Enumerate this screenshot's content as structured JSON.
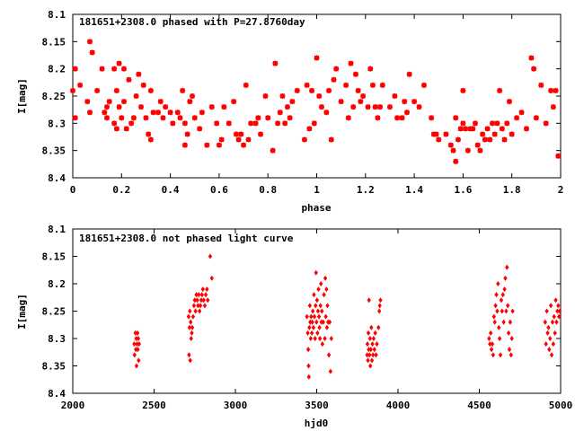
{
  "chart_data": [
    {
      "type": "scatter",
      "title": "181651+2308.0 phased with P=27.8760day",
      "xlabel": "phase",
      "ylabel": "I[mag]",
      "xlim": [
        0,
        2
      ],
      "ylim": [
        8.4,
        8.1
      ],
      "y_inverted": true,
      "marker": "star",
      "marker_color": "#ff0000",
      "xticks": [
        "0",
        "0.2",
        "0.4",
        "0.6",
        "0.8",
        "1",
        "1.2",
        "1.4",
        "1.6",
        "1.8",
        "2"
      ],
      "yticks": [
        "8.1",
        "8.15",
        "8.2",
        "8.25",
        "8.3",
        "8.35",
        "8.4"
      ],
      "points": [
        [
          0.0,
          8.24
        ],
        [
          0.01,
          8.2
        ],
        [
          0.01,
          8.29
        ],
        [
          0.03,
          8.23
        ],
        [
          0.06,
          8.26
        ],
        [
          0.07,
          8.15
        ],
        [
          0.07,
          8.28
        ],
        [
          0.08,
          8.17
        ],
        [
          0.1,
          8.24
        ],
        [
          0.12,
          8.2
        ],
        [
          0.13,
          8.28
        ],
        [
          0.14,
          8.27
        ],
        [
          0.14,
          8.29
        ],
        [
          0.15,
          8.26
        ],
        [
          0.17,
          8.3
        ],
        [
          0.17,
          8.2
        ],
        [
          0.18,
          8.31
        ],
        [
          0.18,
          8.24
        ],
        [
          0.19,
          8.19
        ],
        [
          0.19,
          8.27
        ],
        [
          0.2,
          8.29
        ],
        [
          0.21,
          8.2
        ],
        [
          0.21,
          8.26
        ],
        [
          0.22,
          8.31
        ],
        [
          0.23,
          8.22
        ],
        [
          0.24,
          8.3
        ],
        [
          0.25,
          8.29
        ],
        [
          0.26,
          8.25
        ],
        [
          0.27,
          8.21
        ],
        [
          0.28,
          8.27
        ],
        [
          0.29,
          8.23
        ],
        [
          0.3,
          8.29
        ],
        [
          0.31,
          8.32
        ],
        [
          0.32,
          8.24
        ],
        [
          0.32,
          8.33
        ],
        [
          0.33,
          8.28
        ],
        [
          0.35,
          8.28
        ],
        [
          0.36,
          8.26
        ],
        [
          0.37,
          8.29
        ],
        [
          0.38,
          8.27
        ],
        [
          0.4,
          8.28
        ],
        [
          0.41,
          8.3
        ],
        [
          0.43,
          8.28
        ],
        [
          0.44,
          8.29
        ],
        [
          0.45,
          8.24
        ],
        [
          0.46,
          8.3
        ],
        [
          0.46,
          8.34
        ],
        [
          0.47,
          8.32
        ],
        [
          0.48,
          8.26
        ],
        [
          0.49,
          8.25
        ],
        [
          0.5,
          8.29
        ],
        [
          0.52,
          8.31
        ],
        [
          0.53,
          8.28
        ],
        [
          0.55,
          8.34
        ],
        [
          0.57,
          8.27
        ],
        [
          0.59,
          8.3
        ],
        [
          0.6,
          8.34
        ],
        [
          0.61,
          8.33
        ],
        [
          0.62,
          8.27
        ],
        [
          0.64,
          8.3
        ],
        [
          0.66,
          8.26
        ],
        [
          0.67,
          8.32
        ],
        [
          0.68,
          8.33
        ],
        [
          0.69,
          8.32
        ],
        [
          0.7,
          8.34
        ],
        [
          0.71,
          8.23
        ],
        [
          0.72,
          8.33
        ],
        [
          0.73,
          8.3
        ],
        [
          0.75,
          8.3
        ],
        [
          0.76,
          8.29
        ],
        [
          0.77,
          8.32
        ],
        [
          0.79,
          8.25
        ],
        [
          0.8,
          8.29
        ],
        [
          0.82,
          8.35
        ],
        [
          0.83,
          8.19
        ],
        [
          0.84,
          8.3
        ],
        [
          0.85,
          8.28
        ],
        [
          0.86,
          8.25
        ],
        [
          0.87,
          8.3
        ],
        [
          0.88,
          8.27
        ],
        [
          0.89,
          8.29
        ],
        [
          0.9,
          8.26
        ],
        [
          0.92,
          8.24
        ],
        [
          0.95,
          8.33
        ],
        [
          0.96,
          8.23
        ],
        [
          0.97,
          8.31
        ],
        [
          0.98,
          8.24
        ],
        [
          0.99,
          8.3
        ],
        [
          1.0,
          8.18
        ],
        [
          1.01,
          8.25
        ],
        [
          1.02,
          8.27
        ],
        [
          1.04,
          8.28
        ],
        [
          1.05,
          8.24
        ],
        [
          1.06,
          8.33
        ],
        [
          1.07,
          8.22
        ],
        [
          1.08,
          8.2
        ],
        [
          1.1,
          8.26
        ],
        [
          1.12,
          8.23
        ],
        [
          1.13,
          8.29
        ],
        [
          1.14,
          8.19
        ],
        [
          1.15,
          8.27
        ],
        [
          1.16,
          8.21
        ],
        [
          1.17,
          8.24
        ],
        [
          1.18,
          8.26
        ],
        [
          1.19,
          8.25
        ],
        [
          1.21,
          8.27
        ],
        [
          1.22,
          8.2
        ],
        [
          1.23,
          8.23
        ],
        [
          1.24,
          8.27
        ],
        [
          1.25,
          8.29
        ],
        [
          1.26,
          8.27
        ],
        [
          1.27,
          8.23
        ],
        [
          1.3,
          8.27
        ],
        [
          1.32,
          8.25
        ],
        [
          1.33,
          8.29
        ],
        [
          1.35,
          8.29
        ],
        [
          1.36,
          8.26
        ],
        [
          1.37,
          8.28
        ],
        [
          1.38,
          8.21
        ],
        [
          1.4,
          8.26
        ],
        [
          1.42,
          8.27
        ],
        [
          1.44,
          8.23
        ],
        [
          1.47,
          8.29
        ],
        [
          1.48,
          8.32
        ],
        [
          1.49,
          8.32
        ],
        [
          1.5,
          8.33
        ],
        [
          1.53,
          8.32
        ],
        [
          1.55,
          8.34
        ],
        [
          1.56,
          8.35
        ],
        [
          1.57,
          8.29
        ],
        [
          1.57,
          8.37
        ],
        [
          1.58,
          8.33
        ],
        [
          1.59,
          8.31
        ],
        [
          1.6,
          8.24
        ],
        [
          1.6,
          8.3
        ],
        [
          1.61,
          8.31
        ],
        [
          1.62,
          8.35
        ],
        [
          1.63,
          8.31
        ],
        [
          1.64,
          8.31
        ],
        [
          1.65,
          8.3
        ],
        [
          1.66,
          8.34
        ],
        [
          1.67,
          8.35
        ],
        [
          1.68,
          8.32
        ],
        [
          1.69,
          8.33
        ],
        [
          1.7,
          8.31
        ],
        [
          1.71,
          8.33
        ],
        [
          1.72,
          8.3
        ],
        [
          1.73,
          8.32
        ],
        [
          1.74,
          8.3
        ],
        [
          1.75,
          8.24
        ],
        [
          1.76,
          8.31
        ],
        [
          1.77,
          8.33
        ],
        [
          1.78,
          8.3
        ],
        [
          1.79,
          8.26
        ],
        [
          1.8,
          8.32
        ],
        [
          1.82,
          8.29
        ],
        [
          1.84,
          8.28
        ],
        [
          1.86,
          8.31
        ],
        [
          1.88,
          8.18
        ],
        [
          1.89,
          8.2
        ],
        [
          1.9,
          8.29
        ],
        [
          1.92,
          8.23
        ],
        [
          1.94,
          8.3
        ],
        [
          1.96,
          8.24
        ],
        [
          1.97,
          8.27
        ],
        [
          1.98,
          8.24
        ],
        [
          1.99,
          8.36
        ]
      ]
    },
    {
      "type": "scatter",
      "title": "181651+2308.0 not phased light curve",
      "xlabel": "hjd0",
      "ylabel": "I[mag]",
      "xlim": [
        2000,
        5000
      ],
      "ylim": [
        8.4,
        8.1
      ],
      "y_inverted": true,
      "marker": "diamond",
      "marker_color": "#ff0000",
      "xticks": [
        "2000",
        "2500",
        "3000",
        "3500",
        "4000",
        "4500",
        "5000"
      ],
      "yticks": [
        "8.1",
        "8.15",
        "8.2",
        "8.25",
        "8.3",
        "8.35",
        "8.4"
      ],
      "points": [
        [
          2378,
          8.31
        ],
        [
          2380,
          8.33
        ],
        [
          2385,
          8.29
        ],
        [
          2388,
          8.32
        ],
        [
          2390,
          8.3
        ],
        [
          2392,
          8.35
        ],
        [
          2395,
          8.31
        ],
        [
          2398,
          8.29
        ],
        [
          2400,
          8.32
        ],
        [
          2403,
          8.3
        ],
        [
          2405,
          8.34
        ],
        [
          2408,
          8.31
        ],
        [
          2712,
          8.26
        ],
        [
          2715,
          8.33
        ],
        [
          2718,
          8.28
        ],
        [
          2720,
          8.25
        ],
        [
          2722,
          8.34
        ],
        [
          2725,
          8.27
        ],
        [
          2728,
          8.3
        ],
        [
          2732,
          8.29
        ],
        [
          2735,
          8.28
        ],
        [
          2740,
          8.26
        ],
        [
          2745,
          8.24
        ],
        [
          2750,
          8.23
        ],
        [
          2755,
          8.25
        ],
        [
          2760,
          8.22
        ],
        [
          2765,
          8.23
        ],
        [
          2770,
          8.24
        ],
        [
          2775,
          8.22
        ],
        [
          2780,
          8.25
        ],
        [
          2785,
          8.24
        ],
        [
          2790,
          8.23
        ],
        [
          2795,
          8.22
        ],
        [
          2800,
          8.21
        ],
        [
          2805,
          8.23
        ],
        [
          2812,
          8.24
        ],
        [
          2818,
          8.22
        ],
        [
          2825,
          8.21
        ],
        [
          2830,
          8.23
        ],
        [
          2845,
          8.15
        ],
        [
          2855,
          8.19
        ],
        [
          3440,
          8.26
        ],
        [
          3445,
          8.29
        ],
        [
          3448,
          8.32
        ],
        [
          3450,
          8.35
        ],
        [
          3452,
          8.37
        ],
        [
          3455,
          8.28
        ],
        [
          3458,
          8.24
        ],
        [
          3460,
          8.27
        ],
        [
          3463,
          8.3
        ],
        [
          3466,
          8.26
        ],
        [
          3470,
          8.29
        ],
        [
          3473,
          8.27
        ],
        [
          3476,
          8.25
        ],
        [
          3480,
          8.28
        ],
        [
          3483,
          8.22
        ],
        [
          3486,
          8.26
        ],
        [
          3490,
          8.3
        ],
        [
          3493,
          8.24
        ],
        [
          3496,
          8.18
        ],
        [
          3499,
          8.27
        ],
        [
          3502,
          8.23
        ],
        [
          3505,
          8.29
        ],
        [
          3508,
          8.25
        ],
        [
          3511,
          8.21
        ],
        [
          3514,
          8.26
        ],
        [
          3517,
          8.28
        ],
        [
          3520,
          8.3
        ],
        [
          3523,
          8.24
        ],
        [
          3526,
          8.2
        ],
        [
          3529,
          8.27
        ],
        [
          3532,
          8.25
        ],
        [
          3535,
          8.31
        ],
        [
          3540,
          8.27
        ],
        [
          3545,
          8.22
        ],
        [
          3550,
          8.3
        ],
        [
          3553,
          8.19
        ],
        [
          3556,
          8.26
        ],
        [
          3560,
          8.21
        ],
        [
          3563,
          8.28
        ],
        [
          3566,
          8.24
        ],
        [
          3570,
          8.27
        ],
        [
          3575,
          8.33
        ],
        [
          3580,
          8.27
        ],
        [
          3585,
          8.36
        ],
        [
          3590,
          8.3
        ],
        [
          3810,
          8.33
        ],
        [
          3812,
          8.31
        ],
        [
          3815,
          8.34
        ],
        [
          3818,
          8.29
        ],
        [
          3820,
          8.32
        ],
        [
          3822,
          8.23
        ],
        [
          3825,
          8.33
        ],
        [
          3828,
          8.3
        ],
        [
          3830,
          8.35
        ],
        [
          3833,
          8.32
        ],
        [
          3836,
          8.28
        ],
        [
          3840,
          8.34
        ],
        [
          3843,
          8.31
        ],
        [
          3846,
          8.33
        ],
        [
          3850,
          8.3
        ],
        [
          3855,
          8.32
        ],
        [
          3860,
          8.29
        ],
        [
          3865,
          8.33
        ],
        [
          3870,
          8.31
        ],
        [
          3880,
          8.28
        ],
        [
          3885,
          8.25
        ],
        [
          3888,
          8.24
        ],
        [
          3892,
          8.23
        ],
        [
          4560,
          8.3
        ],
        [
          4565,
          8.31
        ],
        [
          4570,
          8.29
        ],
        [
          4575,
          8.32
        ],
        [
          4580,
          8.31
        ],
        [
          4585,
          8.33
        ],
        [
          4590,
          8.26
        ],
        [
          4595,
          8.27
        ],
        [
          4600,
          8.24
        ],
        [
          4605,
          8.22
        ],
        [
          4610,
          8.25
        ],
        [
          4615,
          8.2
        ],
        [
          4620,
          8.28
        ],
        [
          4625,
          8.3
        ],
        [
          4630,
          8.33
        ],
        [
          4635,
          8.23
        ],
        [
          4640,
          8.25
        ],
        [
          4645,
          8.22
        ],
        [
          4650,
          8.27
        ],
        [
          4655,
          8.21
        ],
        [
          4660,
          8.19
        ],
        [
          4665,
          8.25
        ],
        [
          4670,
          8.17
        ],
        [
          4675,
          8.24
        ],
        [
          4680,
          8.29
        ],
        [
          4685,
          8.32
        ],
        [
          4690,
          8.27
        ],
        [
          4695,
          8.33
        ],
        [
          4700,
          8.3
        ],
        [
          4705,
          8.25
        ],
        [
          4905,
          8.27
        ],
        [
          4910,
          8.31
        ],
        [
          4915,
          8.25
        ],
        [
          4920,
          8.29
        ],
        [
          4925,
          8.28
        ],
        [
          4930,
          8.32
        ],
        [
          4935,
          8.3
        ],
        [
          4940,
          8.24
        ],
        [
          4945,
          8.33
        ],
        [
          4950,
          8.27
        ],
        [
          4955,
          8.31
        ],
        [
          4960,
          8.26
        ],
        [
          4965,
          8.29
        ],
        [
          4970,
          8.23
        ],
        [
          4975,
          8.27
        ],
        [
          4980,
          8.25
        ],
        [
          4985,
          8.24
        ],
        [
          4990,
          8.26
        ],
        [
          4995,
          8.25
        ]
      ]
    }
  ]
}
